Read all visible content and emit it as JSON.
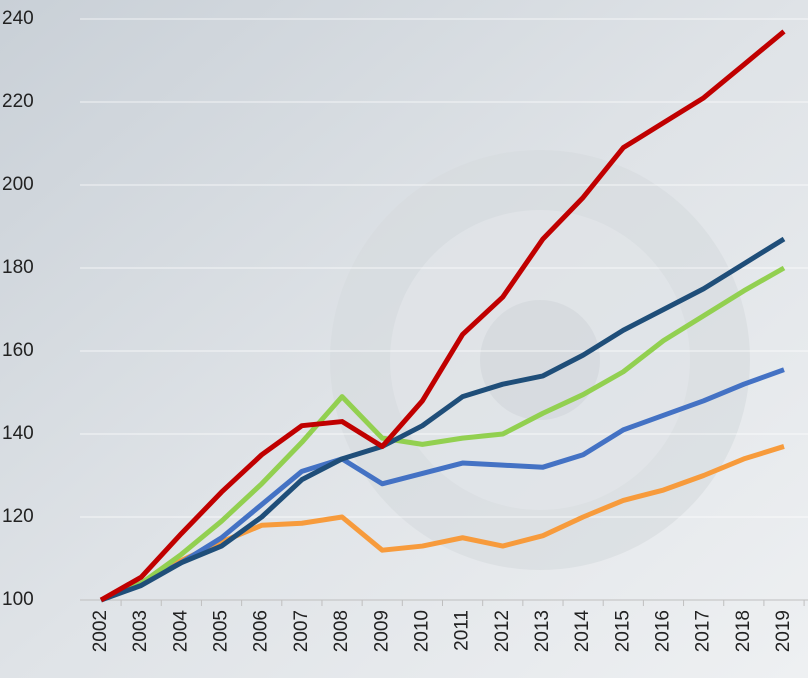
{
  "chart_data": {
    "type": "line",
    "categories": [
      "2002",
      "2003",
      "2004",
      "2005",
      "2006",
      "2007",
      "2008",
      "2009",
      "2010",
      "2011",
      "2012",
      "2013",
      "2014",
      "2015",
      "2016",
      "2017",
      "2018",
      "2019"
    ],
    "series": [
      {
        "color": "#f79b3c",
        "values": [
          100,
          104,
          109.5,
          114,
          118,
          118.5,
          120,
          112,
          113,
          115,
          113,
          115.5,
          120,
          124,
          126.5,
          130,
          134,
          137
        ]
      },
      {
        "color": "#4472c4",
        "values": [
          100,
          104,
          109,
          115,
          123,
          131,
          134,
          128,
          130.5,
          133,
          132.5,
          132,
          135,
          141,
          144.5,
          148,
          152,
          155.5
        ]
      },
      {
        "color": "#92d050",
        "values": [
          100,
          104,
          111,
          119,
          128,
          138,
          149,
          139,
          137.5,
          139,
          140,
          145,
          149.5,
          155,
          162.5,
          168.5,
          174.5,
          180
        ]
      },
      {
        "color": "#1f4e79",
        "values": [
          100,
          103.5,
          109,
          113,
          120,
          129,
          134,
          137,
          142,
          149,
          152,
          154,
          159,
          165,
          170,
          175,
          181,
          187
        ]
      },
      {
        "color": "#c00000",
        "values": [
          100,
          105.5,
          116,
          126,
          135,
          142,
          143,
          137,
          148,
          164,
          173,
          187,
          197,
          209,
          215,
          221,
          229,
          237
        ]
      }
    ],
    "ylim": [
      100,
      240
    ],
    "yticks": [
      100,
      120,
      140,
      160,
      180,
      200,
      220,
      240
    ],
    "grid": true
  }
}
